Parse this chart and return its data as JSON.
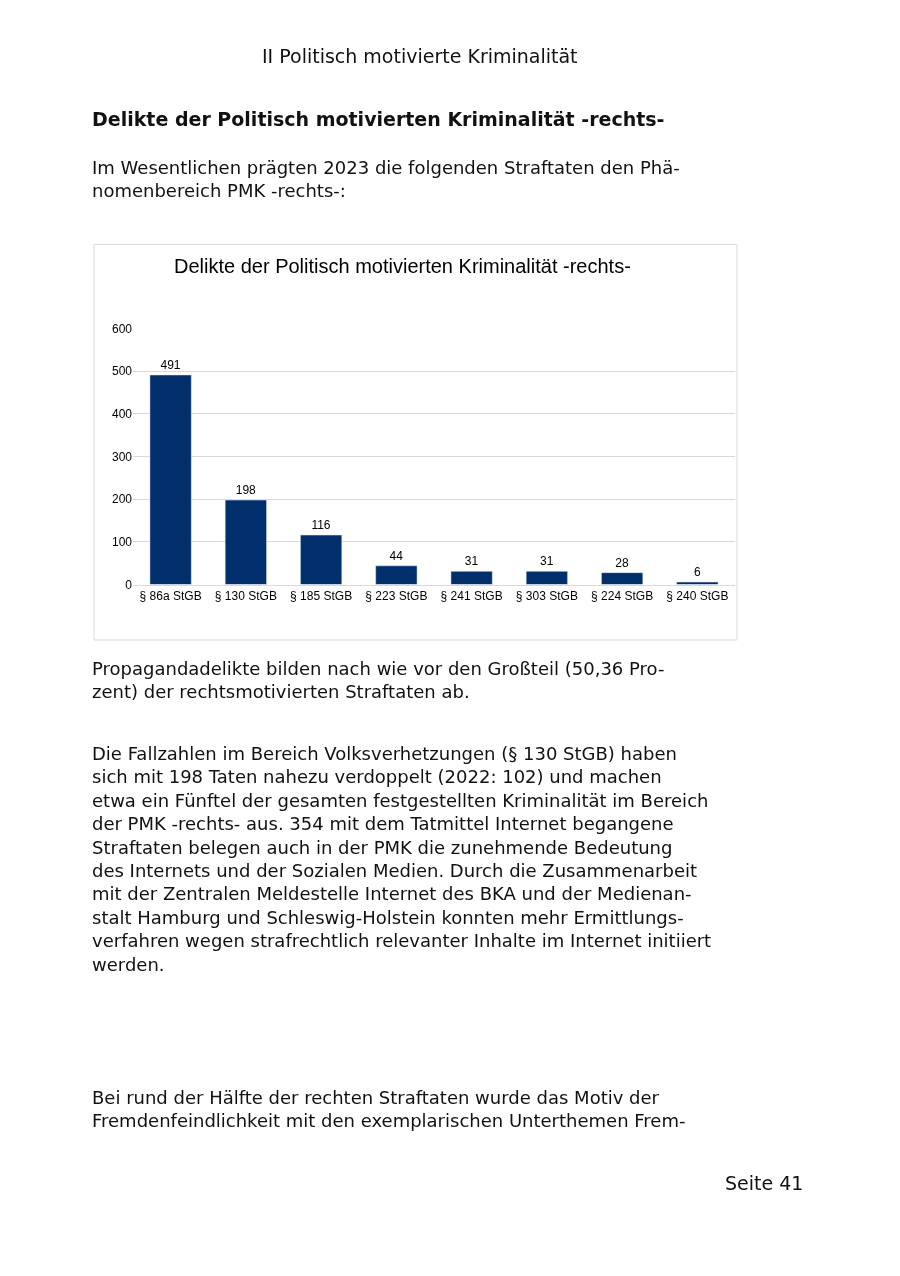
{
  "chart_data": {
    "type": "bar",
    "title": "Delikte der Politisch motivierten Kriminalität -rechts-",
    "categories": [
      "§ 86a StGB",
      "§ 130 StGB",
      "§ 185 StGB",
      "§ 223 StGB",
      "§ 241 StGB",
      "§ 303 StGB",
      "§ 224 StGB",
      "§ 240 StGB"
    ],
    "values": [
      491,
      198,
      116,
      44,
      31,
      31,
      28,
      6
    ],
    "color": "#002f6c",
    "ylim": [
      0,
      600
    ],
    "yticks": [
      0,
      100,
      200,
      300,
      400,
      500,
      600
    ],
    "grid": "y",
    "data_labels": true,
    "legend": false,
    "annotations": [
      "II Politisch motivierte Kriminalität",
      "Delikte der Politisch motivierten Kriminalität -rechts-",
      "Im Wesentlichen prägten 2023 die folgenden Straftaten den Phä-\nnomenbereich PMK -rechts-:",
      "Propagandadelikte bilden nach wie vor den Großteil (50,36 Pro-\nzent) der rechtsmotivierten Straftaten ab.",
      "Die Fallzahlen im Bereich Volksverhetzungen (§ 130 StGB) haben\nsich mit 198 Taten nahezu verdoppelt (2022: 102) und machen\netwa ein Fünftel der gesamten festgestellten Kriminalität im Bereich\nder PMK -rechts- aus. 354 mit dem Tatmittel Internet begangene\nStraftaten belegen auch in der PMK die zunehmende Bedeutung\ndes Internets und der Sozialen Medien. Durch die Zusammenarbeit\nmit der Zentralen Meldestelle Internet des BKA und der Medienan-\nstalt Hamburg und Schleswig-Holstein konnten mehr Ermittlungs-\nverfahren wegen strafrechtlich relevanter Inhalte im Internet initiiert\nwerden.",
      "Bei rund der Hälfte der rechten Straftaten wurde das Motiv der\nFremdenfeindlichkeit mit den exemplarischen Unterthemen Frem-",
      "Seite 41"
    ]
  }
}
